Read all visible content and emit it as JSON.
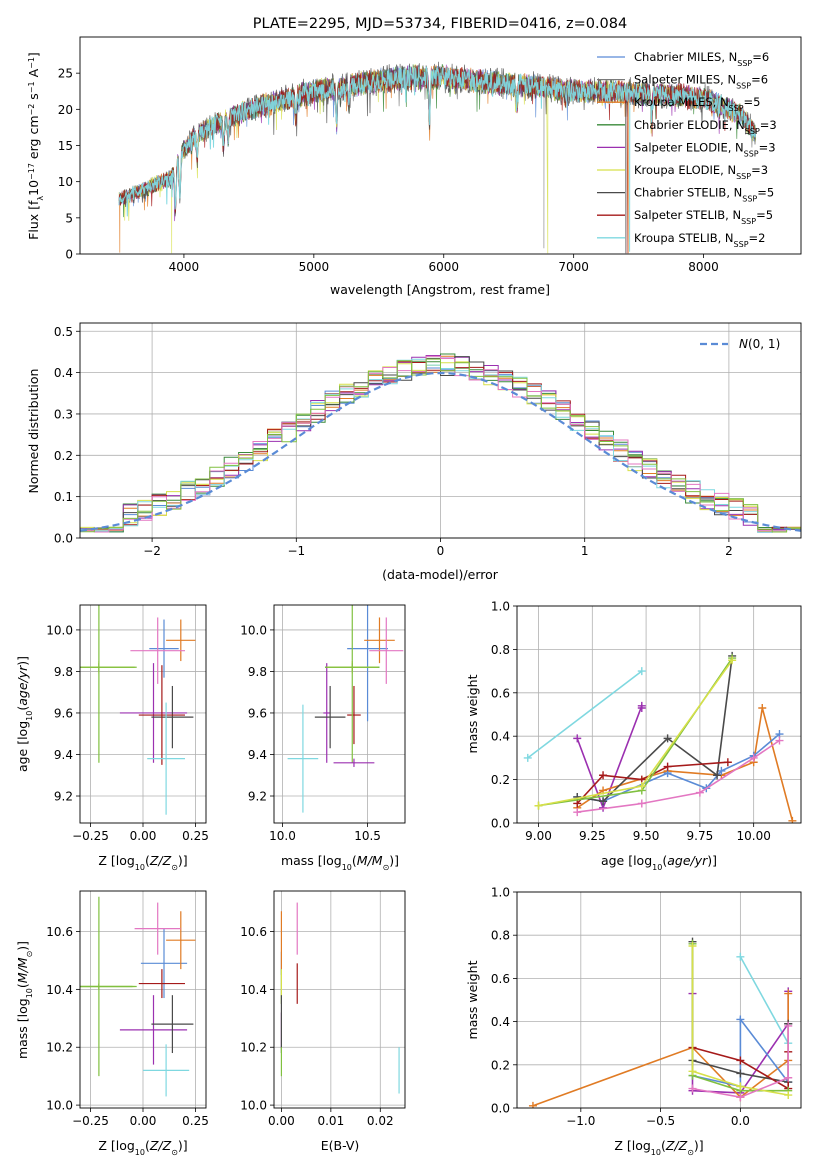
{
  "chart_data": [
    {
      "panel": "spectrum",
      "type": "line",
      "title": "PLATE=2295, MJD=53734, FIBERID=0416, z=0.084",
      "xlabel": "wavelength [Angstrom, rest frame]",
      "ylabel": "Flux [f_λ 10^-17 erg cm^-2 s^-1 A^-1]",
      "xlim": [
        3200,
        8750
      ],
      "ylim": [
        0,
        30
      ],
      "xticks": [
        4000,
        5000,
        6000,
        7000,
        8000
      ],
      "yticks": [
        0,
        5,
        10,
        15,
        20,
        25
      ],
      "grid": false,
      "legend_position": "top-right",
      "series": [
        {
          "name": "Chabrier MILES, N_SSP=6",
          "color": "#5a8bd6"
        },
        {
          "name": "Salpeter MILES, N_SSP=6",
          "color": "#7a7a7a"
        },
        {
          "name": "Kroupa MILES, N_SSP=5",
          "color": "#e07b24"
        },
        {
          "name": "Chabrier ELODIE, N_SSP=3",
          "color": "#3a8a3a"
        },
        {
          "name": "Salpeter ELODIE, N_SSP=3",
          "color": "#9b30b0"
        },
        {
          "name": "Kroupa ELODIE, N_SSP=3",
          "color": "#d7e04a"
        },
        {
          "name": "Chabrier STELIB, N_SSP=5",
          "color": "#4a4a4a"
        },
        {
          "name": "Salpeter STELIB, N_SSP=5",
          "color": "#a51a1a"
        },
        {
          "name": "Kroupa STELIB, N_SSP=2",
          "color": "#7fd8e0"
        }
      ],
      "continuum_x": [
        3500,
        3700,
        3900,
        4000,
        4100,
        4300,
        4500,
        4800,
        5000,
        5200,
        5500,
        5800,
        6000,
        6200,
        6500,
        6800,
        7000,
        7300,
        7600,
        7800,
        8000,
        8200,
        8300,
        8400
      ],
      "continuum_y": [
        7.5,
        9,
        10.5,
        14.5,
        16.5,
        18.5,
        20,
        21.5,
        22.5,
        23,
        24,
        24.5,
        24.5,
        24,
        23.5,
        23,
        22.5,
        22.5,
        22,
        22,
        21.5,
        20,
        19,
        16.5
      ]
    },
    {
      "panel": "residuals",
      "type": "histogram",
      "xlabel": "(data-model)/error",
      "ylabel": "Normed distribution",
      "xlim": [
        -2.5,
        2.5
      ],
      "ylim": [
        0,
        0.52
      ],
      "xticks": [
        -2,
        -1,
        0,
        1,
        2
      ],
      "yticks": [
        0.0,
        0.1,
        0.2,
        0.3,
        0.4,
        0.5
      ],
      "grid": true,
      "legend_position": "top-right",
      "legend": [
        "N(0,1)"
      ],
      "reference_curve": {
        "name": "N(0,1)",
        "mu": 0,
        "sigma": 1,
        "color": "#5a8bd6",
        "style": "dashed"
      },
      "bin_width": 0.1,
      "bin_start": -2.5,
      "bin_count": 50
    },
    {
      "panel": "age-vs-Z",
      "type": "errorbar",
      "xlabel": "Z [log10(Z/Z_sun)]",
      "ylabel": "age [log10(age/yr)]",
      "xlim": [
        -0.3,
        0.3
      ],
      "ylim": [
        9.07,
        10.12
      ],
      "xticks": [
        -0.25,
        0.0,
        0.25
      ],
      "yticks": [
        9.2,
        9.4,
        9.6,
        9.8,
        10.0
      ],
      "grid": true,
      "points": [
        {
          "color": "#5a8bd6",
          "x": 0.1,
          "y": 9.91,
          "xerr": 0.07,
          "yerr": 0.14
        },
        {
          "color": "#e07b24",
          "x": 0.18,
          "y": 9.95,
          "xerr": 0.07,
          "yerr": 0.1
        },
        {
          "color": "#3a8a3a",
          "x": -0.21,
          "y": 9.82,
          "xerr": 0.17,
          "yerr": 0.02
        },
        {
          "color": "#9b30b0",
          "x": 0.05,
          "y": 9.6,
          "xerr": 0.16,
          "yerr": 0.24
        },
        {
          "color": "#d7e04a",
          "x": -0.21,
          "y": 9.82,
          "xerr": 0.17,
          "yerr": 0.03
        },
        {
          "color": "#4a4a4a",
          "x": 0.14,
          "y": 9.58,
          "xerr": 0.1,
          "yerr": 0.15
        },
        {
          "color": "#a51a1a",
          "x": 0.09,
          "y": 9.59,
          "xerr": 0.11,
          "yerr": 0.24
        },
        {
          "color": "#7fd8e0",
          "x": 0.11,
          "y": 9.38,
          "xerr": 0.09,
          "yerr": 0.27
        },
        {
          "color": "#e377c2",
          "x": 0.07,
          "y": 9.9,
          "xerr": 0.13,
          "yerr": 0.16
        },
        {
          "color": "#80c040",
          "x": -0.21,
          "y": 9.82,
          "xerr": 0.18,
          "yerr": 0.46
        }
      ]
    },
    {
      "panel": "age-vs-mass",
      "type": "errorbar",
      "xlabel": "mass [log10(M/M_sun)]",
      "ylabel": "",
      "xlim": [
        9.95,
        10.72
      ],
      "ylim": [
        9.07,
        10.12
      ],
      "xticks": [
        10.0,
        10.5
      ],
      "yticks": [
        9.2,
        9.4,
        9.6,
        9.8,
        10.0
      ],
      "grid": true,
      "points": [
        {
          "color": "#5a8bd6",
          "x": 10.5,
          "y": 9.91,
          "xerr": 0.12,
          "yerr": 0.35
        },
        {
          "color": "#e07b24",
          "x": 10.57,
          "y": 9.95,
          "xerr": 0.09,
          "yerr": 0.11
        },
        {
          "color": "#3a8a3a",
          "x": 10.41,
          "y": 9.82,
          "xerr": 0.16,
          "yerr": 0.02
        },
        {
          "color": "#9b30b0",
          "x": 10.26,
          "y": 9.6,
          "xerr": 0.02,
          "yerr": 0.24
        },
        {
          "color": "#d7e04a",
          "x": 10.41,
          "y": 9.82,
          "xerr": 0.15,
          "yerr": 0.03
        },
        {
          "color": "#4a4a4a",
          "x": 10.28,
          "y": 9.58,
          "xerr": 0.09,
          "yerr": 0.15
        },
        {
          "color": "#a51a1a",
          "x": 10.42,
          "y": 9.59,
          "xerr": 0.04,
          "yerr": 0.14
        },
        {
          "color": "#7fd8e0",
          "x": 10.12,
          "y": 9.38,
          "xerr": 0.09,
          "yerr": 0.26
        },
        {
          "color": "#e377c2",
          "x": 10.61,
          "y": 9.9,
          "xerr": 0.1,
          "yerr": 0.16
        },
        {
          "color": "#80c040",
          "x": 10.41,
          "y": 9.82,
          "xerr": 0.16,
          "yerr": 0.46
        },
        {
          "color": "#9b30b0",
          "x": 10.42,
          "y": 9.36,
          "xerr": 0.12,
          "yerr": 0.02
        }
      ]
    },
    {
      "panel": "weight-vs-age",
      "type": "line",
      "xlabel": "age [log10(age/yr)]",
      "ylabel": "mass weight",
      "xlim": [
        8.9,
        10.22
      ],
      "ylim": [
        0,
        1
      ],
      "xticks": [
        9.0,
        9.25,
        9.5,
        9.75,
        10.0
      ],
      "yticks": [
        0.0,
        0.2,
        0.4,
        0.6,
        0.8,
        1.0
      ],
      "grid": true,
      "series": [
        {
          "color": "#7fd8e0",
          "x": [
            8.95,
            9.48
          ],
          "y": [
            0.3,
            0.7
          ]
        },
        {
          "color": "#9b30b0",
          "x": [
            9.18,
            9.3,
            9.48,
            9.48
          ],
          "y": [
            0.39,
            0.07,
            0.54,
            0.53
          ]
        },
        {
          "color": "#e07b24",
          "x": [
            9.18,
            9.3,
            9.6,
            9.85,
            10.0,
            10.04,
            10.18
          ],
          "y": [
            0.07,
            0.15,
            0.24,
            0.22,
            0.28,
            0.53,
            0.01
          ]
        },
        {
          "color": "#5a8bd6",
          "x": [
            9.18,
            9.3,
            9.6,
            9.78,
            9.85,
            10.0,
            10.12
          ],
          "y": [
            0.12,
            0.1,
            0.23,
            0.16,
            0.24,
            0.31,
            0.41
          ]
        },
        {
          "color": "#4a4a4a",
          "x": [
            9.18,
            9.3,
            9.6,
            9.83,
            9.9
          ],
          "y": [
            0.12,
            0.1,
            0.39,
            0.22,
            0.77
          ]
        },
        {
          "color": "#a51a1a",
          "x": [
            9.18,
            9.3,
            9.48,
            9.6,
            9.88
          ],
          "y": [
            0.09,
            0.22,
            0.2,
            0.26,
            0.28
          ]
        },
        {
          "color": "#80c040",
          "x": [
            9.0,
            9.48,
            9.9
          ],
          "y": [
            0.08,
            0.15,
            0.76
          ]
        },
        {
          "color": "#d7e04a",
          "x": [
            9.0,
            9.48,
            9.9
          ],
          "y": [
            0.08,
            0.17,
            0.75
          ]
        },
        {
          "color": "#e377c2",
          "x": [
            9.18,
            9.48,
            9.75,
            10.0,
            10.12
          ],
          "y": [
            0.05,
            0.09,
            0.14,
            0.3,
            0.38
          ]
        }
      ]
    },
    {
      "panel": "mass-vs-Z",
      "type": "errorbar",
      "xlabel": "Z [log10(Z/Z_sun)]",
      "ylabel": "mass [log10(M/M_sun)]",
      "xlim": [
        -0.3,
        0.3
      ],
      "ylim": [
        9.99,
        10.74
      ],
      "xticks": [
        -0.25,
        0.0,
        0.25
      ],
      "yticks": [
        10.0,
        10.2,
        10.4,
        10.6
      ],
      "grid": true,
      "points": [
        {
          "color": "#5a8bd6",
          "x": 0.1,
          "y": 10.49,
          "xerr": 0.11,
          "yerr": 0.12
        },
        {
          "color": "#e07b24",
          "x": 0.18,
          "y": 10.57,
          "xerr": 0.07,
          "yerr": 0.1
        },
        {
          "color": "#3a8a3a",
          "x": -0.21,
          "y": 10.41,
          "xerr": 0.16,
          "yerr": 0.01
        },
        {
          "color": "#9b30b0",
          "x": 0.05,
          "y": 10.26,
          "xerr": 0.16,
          "yerr": 0.12
        },
        {
          "color": "#d7e04a",
          "x": -0.21,
          "y": 10.41,
          "xerr": 0.17,
          "yerr": 0.01
        },
        {
          "color": "#4a4a4a",
          "x": 0.14,
          "y": 10.28,
          "xerr": 0.1,
          "yerr": 0.1
        },
        {
          "color": "#a51a1a",
          "x": 0.09,
          "y": 10.42,
          "xerr": 0.11,
          "yerr": 0.05
        },
        {
          "color": "#7fd8e0",
          "x": 0.11,
          "y": 10.12,
          "xerr": 0.11,
          "yerr": 0.09
        },
        {
          "color": "#e377c2",
          "x": 0.07,
          "y": 10.61,
          "xerr": 0.11,
          "yerr": 0.09
        },
        {
          "color": "#80c040",
          "x": -0.21,
          "y": 10.41,
          "xerr": 0.18,
          "yerr": 0.31
        }
      ]
    },
    {
      "panel": "mass-vs-EBV",
      "type": "errorbar",
      "xlabel": "E(B-V)",
      "ylabel": "",
      "xlim": [
        -0.0015,
        0.025
      ],
      "ylim": [
        9.99,
        10.74
      ],
      "xticks": [
        0.0,
        0.01,
        0.02
      ],
      "yticks": [
        10.0,
        10.2,
        10.4,
        10.6
      ],
      "grid": true,
      "points": [
        {
          "color": "#5a8bd6",
          "x": 0.0,
          "y": 10.49,
          "xerr": 0,
          "yerr": 0.04
        },
        {
          "color": "#e07b24",
          "x": 0.0,
          "y": 10.57,
          "xerr": 0,
          "yerr": 0.1
        },
        {
          "color": "#3a8a3a",
          "x": 0.0,
          "y": 10.41,
          "xerr": 0,
          "yerr": 0.06
        },
        {
          "color": "#9b30b0",
          "x": 0.0,
          "y": 10.26,
          "xerr": 0,
          "yerr": 0.06
        },
        {
          "color": "#d7e04a",
          "x": 0.0,
          "y": 10.41,
          "xerr": 0,
          "yerr": 0.06
        },
        {
          "color": "#4a4a4a",
          "x": 0.0,
          "y": 10.28,
          "xerr": 0,
          "yerr": 0.1
        },
        {
          "color": "#a51a1a",
          "x": 0.0032,
          "y": 10.42,
          "xerr": 0,
          "yerr": 0.07
        },
        {
          "color": "#7fd8e0",
          "x": 0.0238,
          "y": 10.12,
          "xerr": 0,
          "yerr": 0.08
        },
        {
          "color": "#e377c2",
          "x": 0.0032,
          "y": 10.61,
          "xerr": 0,
          "yerr": 0.09
        },
        {
          "color": "#80c040",
          "x": 0.0,
          "y": 10.15,
          "xerr": 0,
          "yerr": 0.05
        }
      ]
    },
    {
      "panel": "weight-vs-Z",
      "type": "line",
      "xlabel": "Z [log10(Z/Z_sun)]",
      "ylabel": "mass weight",
      "xlim": [
        -1.4,
        0.38
      ],
      "ylim": [
        0,
        1
      ],
      "xticks": [
        -1.0,
        -0.5,
        0.0
      ],
      "yticks": [
        0.0,
        0.2,
        0.4,
        0.6,
        0.8,
        1.0
      ],
      "grid": true,
      "series": [
        {
          "color": "#7fd8e0",
          "x": [
            0.0,
            0.3
          ],
          "y": [
            0.7,
            0.3
          ]
        },
        {
          "color": "#9b30b0",
          "x": [
            -0.3,
            -0.3,
            0.0,
            0.3,
            0.3
          ],
          "y": [
            0.53,
            0.08,
            0.07,
            0.39,
            0.54
          ]
        },
        {
          "color": "#e07b24",
          "x": [
            -1.3,
            -0.3,
            0.0,
            0.3,
            0.3
          ],
          "y": [
            0.01,
            0.28,
            0.05,
            0.22,
            0.53
          ]
        },
        {
          "color": "#5a8bd6",
          "x": [
            -0.3,
            0.0,
            0.0,
            0.3
          ],
          "y": [
            0.15,
            0.1,
            0.41,
            0.12
          ]
        },
        {
          "color": "#4a4a4a",
          "x": [
            -0.3,
            -0.3,
            0.0,
            0.3,
            0.3
          ],
          "y": [
            0.77,
            0.22,
            0.16,
            0.12,
            0.39
          ]
        },
        {
          "color": "#a51a1a",
          "x": [
            -0.3,
            0.0,
            0.3,
            0.3
          ],
          "y": [
            0.28,
            0.22,
            0.09,
            0.26
          ]
        },
        {
          "color": "#80c040",
          "x": [
            -0.3,
            -0.3,
            0.0,
            0.3
          ],
          "y": [
            0.76,
            0.15,
            0.08,
            0.08
          ]
        },
        {
          "color": "#d7e04a",
          "x": [
            -0.3,
            -0.3,
            0.0,
            0.3
          ],
          "y": [
            0.75,
            0.17,
            0.1,
            0.06
          ]
        },
        {
          "color": "#e377c2",
          "x": [
            -0.3,
            0.0,
            0.3,
            0.3
          ],
          "y": [
            0.09,
            0.05,
            0.14,
            0.38
          ]
        }
      ]
    }
  ]
}
